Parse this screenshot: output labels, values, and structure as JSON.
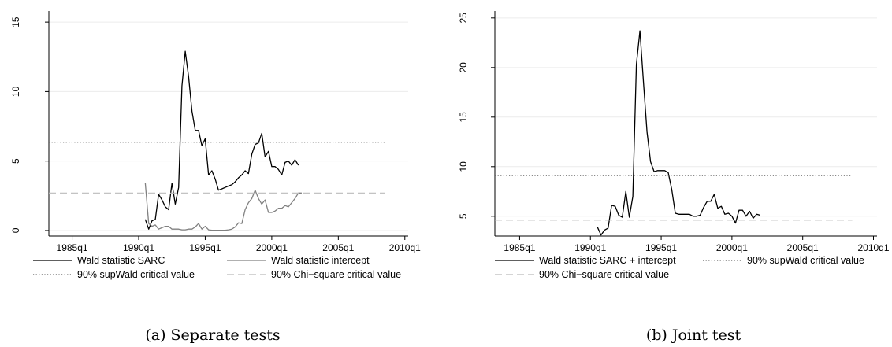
{
  "chart_data": [
    {
      "type": "line",
      "caption": "(a) Separate tests",
      "x_ticks": [
        "1985q1",
        "1990q1",
        "1995q1",
        "2000q1",
        "2005q1",
        "2010q1"
      ],
      "x_tick_values": [
        1985,
        1990,
        1995,
        2000,
        2005,
        2010
      ],
      "xlim": [
        1983.25,
        2010.25
      ],
      "y_ticks": [
        "0",
        "5",
        "10",
        "15"
      ],
      "y_tick_values": [
        0,
        5,
        10,
        15
      ],
      "ylim": [
        -0.4,
        15.8
      ],
      "grid": true,
      "legend_position": "bottom",
      "series": [
        {
          "name": "Wald statistic SARC",
          "color": "#000000",
          "dash": "solid",
          "x": [
            1990.5,
            1990.75,
            1991.0,
            1991.25,
            1991.5,
            1991.75,
            1992.0,
            1992.25,
            1992.5,
            1992.75,
            1993.0,
            1993.25,
            1993.5,
            1993.75,
            1994.0,
            1994.25,
            1994.5,
            1994.75,
            1995.0,
            1995.25,
            1995.5,
            1995.75,
            1996.0,
            1996.25,
            1996.5,
            1996.75,
            1997.0,
            1997.25,
            1997.5,
            1997.75,
            1998.0,
            1998.25,
            1998.5,
            1998.75,
            1999.0,
            1999.25,
            1999.5,
            1999.75,
            2000.0,
            2000.25,
            2000.5,
            2000.75,
            2001.0,
            2001.25,
            2001.5,
            2001.75,
            2002.0
          ],
          "y": [
            0.8,
            0.1,
            0.7,
            0.8,
            2.6,
            2.2,
            1.7,
            1.5,
            3.4,
            1.9,
            3.1,
            10.4,
            12.9,
            11.1,
            8.6,
            7.2,
            7.2,
            6.1,
            6.6,
            4.0,
            4.3,
            3.7,
            2.9,
            3.0,
            3.1,
            3.2,
            3.3,
            3.5,
            3.8,
            4.0,
            4.3,
            4.1,
            5.5,
            6.2,
            6.3,
            7.0,
            5.3,
            5.7,
            4.6,
            4.6,
            4.4,
            4.0,
            4.9,
            5.0,
            4.7,
            5.1,
            4.7
          ]
        },
        {
          "name": "Wald statistic intercept",
          "color": "#808080",
          "dash": "solid",
          "x": [
            1990.5,
            1990.75,
            1991.0,
            1991.25,
            1991.5,
            1991.75,
            1992.0,
            1992.25,
            1992.5,
            1992.75,
            1993.0,
            1993.25,
            1993.5,
            1993.75,
            1994.0,
            1994.25,
            1994.5,
            1994.75,
            1995.0,
            1995.25,
            1995.5,
            1995.75,
            1996.0,
            1996.25,
            1996.5,
            1996.75,
            1997.0,
            1997.25,
            1997.5,
            1997.75,
            1998.0,
            1998.25,
            1998.5,
            1998.75,
            1999.0,
            1999.25,
            1999.5,
            1999.75,
            2000.0,
            2000.25,
            2000.5,
            2000.75,
            2001.0,
            2001.25,
            2001.5,
            2001.75,
            2002.0,
            2002.25
          ],
          "y": [
            3.4,
            0.5,
            0.3,
            0.4,
            0.1,
            0.2,
            0.3,
            0.3,
            0.1,
            0.1,
            0.1,
            0.05,
            0.05,
            0.1,
            0.1,
            0.25,
            0.5,
            0.1,
            0.3,
            0.05,
            0.02,
            0.02,
            0.02,
            0.02,
            0.02,
            0.05,
            0.1,
            0.25,
            0.55,
            0.5,
            1.5,
            2.0,
            2.3,
            2.9,
            2.3,
            1.9,
            2.2,
            1.3,
            1.3,
            1.4,
            1.6,
            1.6,
            1.8,
            1.7,
            2.0,
            2.3,
            2.7,
            2.7
          ]
        },
        {
          "name": "90% supWald critical value",
          "color": "#606060",
          "dash": "dotted",
          "x": [
            1983.25,
            2008.5
          ],
          "y": [
            6.35,
            6.35
          ]
        },
        {
          "name": "90% Chi−square critical value",
          "color": "#bbbbbb",
          "dash": "dashed",
          "x": [
            1983.25,
            2008.5
          ],
          "y": [
            2.7,
            2.7
          ]
        }
      ]
    },
    {
      "type": "line",
      "caption": "(b) Joint test",
      "x_ticks": [
        "1985q1",
        "1990q1",
        "1995q1",
        "2000q1",
        "2005q1",
        "2010q1"
      ],
      "x_tick_values": [
        1985,
        1990,
        1995,
        2000,
        2005,
        2010
      ],
      "xlim": [
        1983.25,
        2010.25
      ],
      "y_ticks": [
        "5",
        "10",
        "15",
        "20",
        "25"
      ],
      "y_tick_values": [
        5,
        10,
        15,
        20,
        25
      ],
      "ylim": [
        3.0,
        25.7
      ],
      "grid": true,
      "legend_position": "bottom",
      "series": [
        {
          "name": "Wald statistic SARC + intercept",
          "color": "#000000",
          "dash": "solid",
          "x": [
            1990.5,
            1990.75,
            1991.0,
            1991.25,
            1991.5,
            1991.75,
            1992.0,
            1992.25,
            1992.5,
            1992.75,
            1993.0,
            1993.25,
            1993.5,
            1993.75,
            1994.0,
            1994.25,
            1994.5,
            1994.75,
            1995.0,
            1995.25,
            1995.5,
            1995.75,
            1996.0,
            1996.25,
            1996.5,
            1996.75,
            1997.0,
            1997.25,
            1997.5,
            1997.75,
            1998.0,
            1998.25,
            1998.5,
            1998.75,
            1999.0,
            1999.25,
            1999.5,
            1999.75,
            2000.0,
            2000.25,
            2000.5,
            2000.75,
            2001.0,
            2001.25,
            2001.5,
            2001.75,
            2002.0
          ],
          "y": [
            3.9,
            3.1,
            3.6,
            3.8,
            6.1,
            6.0,
            5.1,
            4.9,
            7.5,
            4.9,
            7.0,
            20.3,
            23.7,
            18.5,
            13.5,
            10.5,
            9.5,
            9.6,
            9.6,
            9.6,
            9.4,
            7.7,
            5.3,
            5.2,
            5.2,
            5.2,
            5.2,
            5.0,
            5.0,
            5.1,
            5.9,
            6.5,
            6.5,
            7.2,
            5.8,
            6.0,
            5.2,
            5.3,
            5.0,
            4.3,
            5.6,
            5.6,
            5.0,
            5.5,
            4.8,
            5.2,
            5.1
          ]
        },
        {
          "name": "90% supWald critical value",
          "color": "#606060",
          "dash": "dotted",
          "x": [
            1983.25,
            2008.5
          ],
          "y": [
            9.1,
            9.1
          ]
        },
        {
          "name": "90% Chi−square critical value",
          "color": "#bbbbbb",
          "dash": "dashed",
          "x": [
            1983.25,
            2008.5
          ],
          "y": [
            4.6,
            4.6
          ]
        }
      ]
    }
  ]
}
